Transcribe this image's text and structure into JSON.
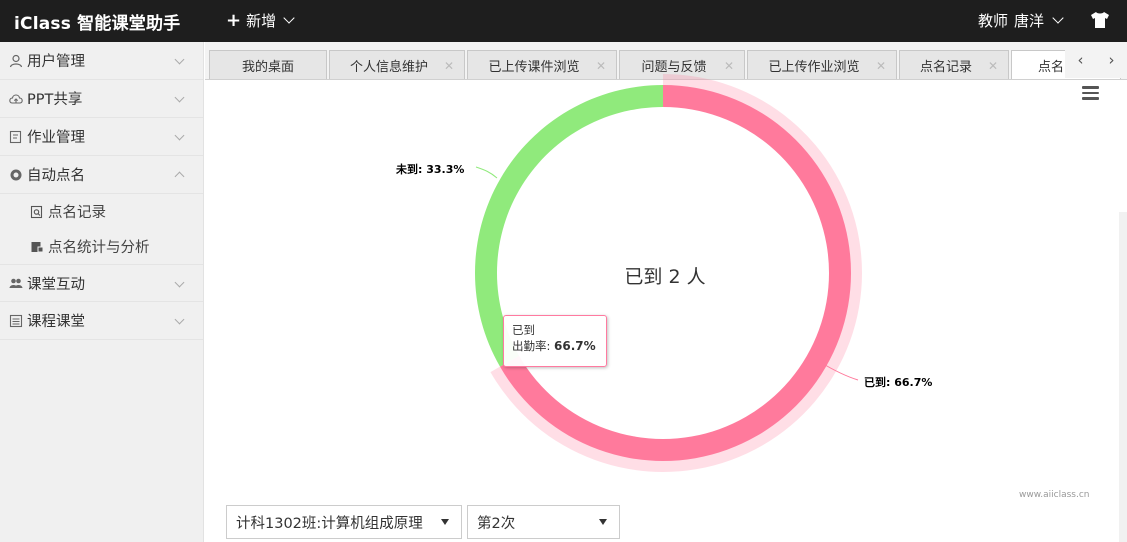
{
  "app": {
    "brand": "iClass 智能课堂助手",
    "new_label": "新增",
    "user_role": "教师",
    "user_name": "唐洋"
  },
  "sidebar": {
    "items": [
      {
        "label": "用户管理",
        "icon": "user-icon",
        "expanded": false
      },
      {
        "label": "PPT共享",
        "icon": "cloud-upload-icon",
        "expanded": false
      },
      {
        "label": "作业管理",
        "icon": "edit-icon",
        "expanded": false
      },
      {
        "label": "自动点名",
        "icon": "target-icon",
        "expanded": true
      },
      {
        "label": "课堂互动",
        "icon": "users-icon",
        "expanded": false
      },
      {
        "label": "课程课堂",
        "icon": "list-icon",
        "expanded": false
      }
    ],
    "subitems": [
      {
        "label": "点名记录",
        "icon": "search-doc-icon"
      },
      {
        "label": "点名统计与分析",
        "icon": "chart-doc-icon"
      }
    ]
  },
  "tabs": [
    {
      "label": "我的桌面",
      "closable": false
    },
    {
      "label": "个人信息维护",
      "closable": true
    },
    {
      "label": "已上传课件浏览",
      "closable": true
    },
    {
      "label": "问题与反馈",
      "closable": true
    },
    {
      "label": "已上传作业浏览",
      "closable": true
    },
    {
      "label": "点名记录",
      "closable": true
    },
    {
      "label": "点名",
      "closable": true,
      "active": true
    }
  ],
  "chart_data": {
    "type": "pie",
    "donut": true,
    "center_text": "已到 2 人",
    "slices": [
      {
        "name": "已到",
        "value": 66.7,
        "color": "#ff7a9c"
      },
      {
        "name": "未到",
        "value": 33.3,
        "color": "#90ea7c"
      }
    ],
    "data_labels": [
      "未到: 33.3%",
      "已到: 66.7%"
    ],
    "tooltip": {
      "title": "已到",
      "metric": "出勤率",
      "value": "66.7%"
    }
  },
  "credit": "www.aiiclass.cn",
  "filters": {
    "class_select": "计科1302班:计算机组成原理",
    "session_select": "第2次"
  },
  "colors": {
    "topbar": "#1e1e1e",
    "sidebar": "#f0f0f0",
    "present": "#ff7a9c",
    "absent": "#90ea7c"
  }
}
